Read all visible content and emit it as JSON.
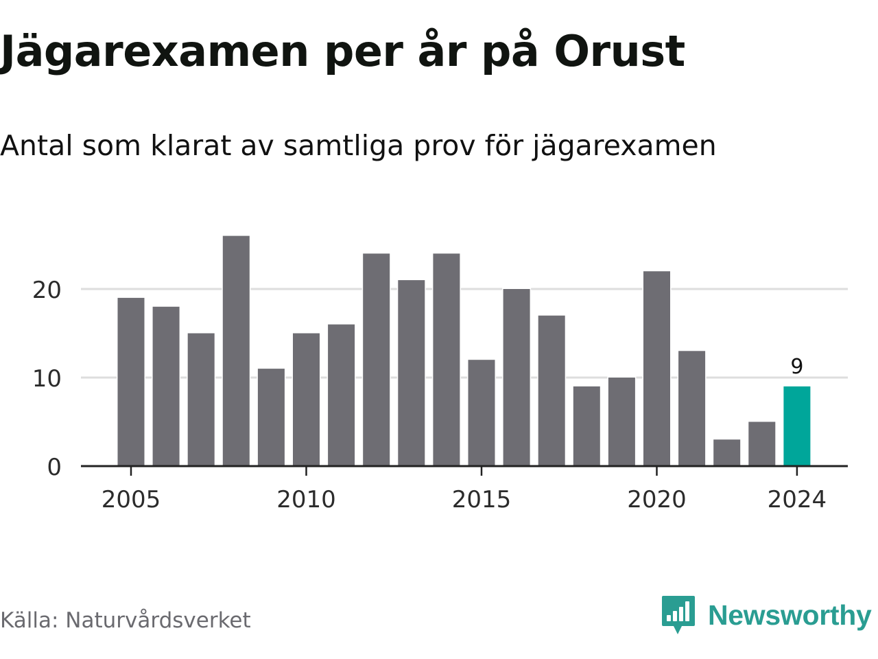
{
  "title": "Jägarexamen per år på Orust",
  "subtitle": "Antal som klarat av samtliga prov för jägarexamen",
  "source": "Källa: Naturvårdsverket",
  "brand": "Newsworthy",
  "colors": {
    "bar": "#6e6d73",
    "highlight": "#00a69a",
    "grid": "#dedede",
    "axis": "#222222",
    "brand": "#2a9d92"
  },
  "chart_data": {
    "type": "bar",
    "categories": [
      2005,
      2006,
      2007,
      2008,
      2009,
      2010,
      2011,
      2012,
      2013,
      2014,
      2015,
      2016,
      2017,
      2018,
      2019,
      2020,
      2021,
      2022,
      2023,
      2024
    ],
    "values": [
      19,
      18,
      15,
      26,
      11,
      15,
      16,
      24,
      21,
      24,
      12,
      20,
      17,
      9,
      10,
      22,
      13,
      3,
      5,
      9
    ],
    "highlight_category": 2024,
    "highlight_label": "9",
    "title": "Jägarexamen per år på Orust",
    "subtitle": "Antal som klarat av samtliga prov för jägarexamen",
    "xlabel": "",
    "ylabel": "",
    "ylim": [
      0,
      28
    ],
    "y_ticks": [
      0,
      10,
      20
    ],
    "x_ticks": [
      2005,
      2010,
      2015,
      2020,
      2024
    ],
    "grid": true,
    "legend": "none"
  }
}
